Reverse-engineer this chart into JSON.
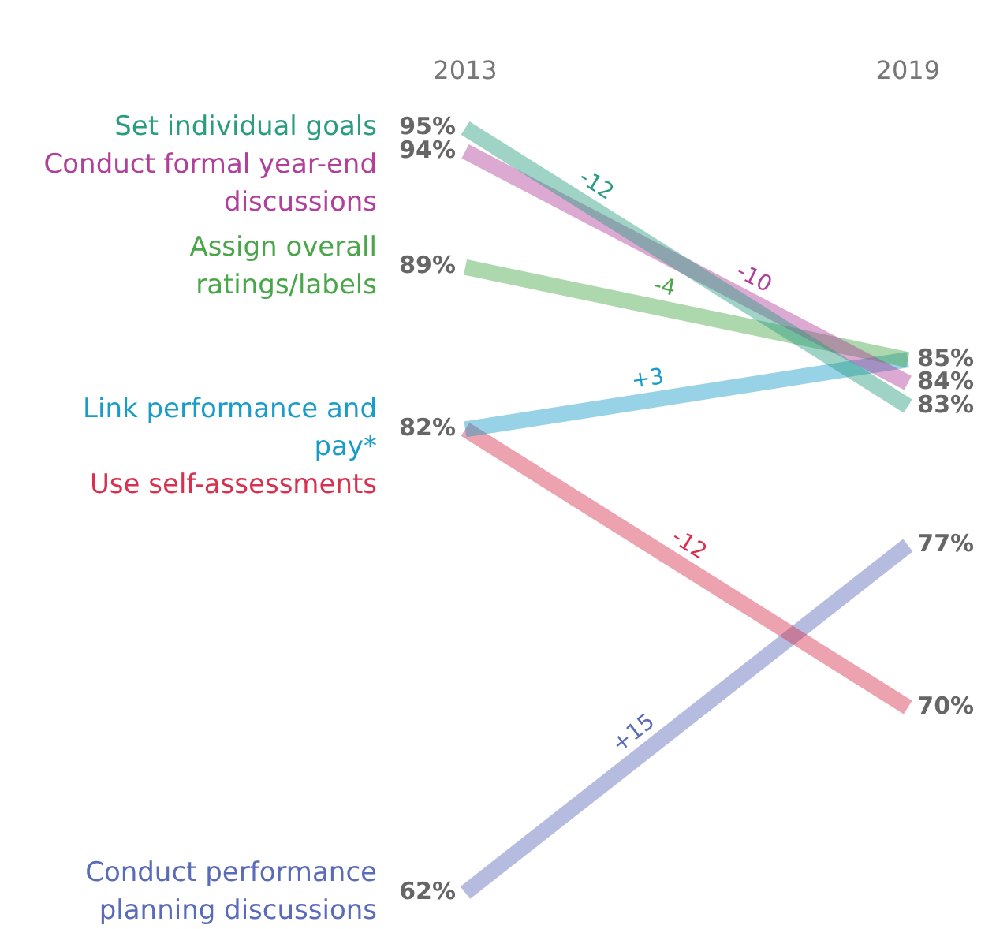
{
  "chart_data": {
    "type": "line",
    "categories": [
      "2013",
      "2019"
    ],
    "tick_labels": "x",
    "grid": false,
    "legend": false,
    "marker": "none",
    "line_style": "solid",
    "series": [
      {
        "name": "Set individual goals",
        "color": "#2a9d80",
        "values": [
          95,
          83
        ],
        "value_labels": [
          "95%",
          "83%"
        ]
      },
      {
        "name": "Conduct formal year-end discussions",
        "color": "#b0409a",
        "values": [
          94,
          84
        ],
        "value_labels": [
          "94%",
          "84%"
        ]
      },
      {
        "name": "Assign overall ratings/labels",
        "color": "#4aa64a",
        "values": [
          89,
          85
        ],
        "value_labels": [
          "89%",
          "85%"
        ]
      },
      {
        "name": "Link performance and pay*",
        "color": "#1a9cc8",
        "values": [
          82,
          85
        ],
        "value_labels": [
          "82%",
          null
        ]
      },
      {
        "name": "Use self-assessments",
        "color": "#d8304e",
        "values": [
          82,
          70
        ],
        "value_labels": [
          null,
          "70%"
        ]
      },
      {
        "name": "Conduct performance planning discussions",
        "color": "#5a6bb8",
        "values": [
          62,
          77
        ],
        "value_labels": [
          "62%",
          "77%"
        ]
      }
    ],
    "annotations": [
      "-12",
      "-10",
      "-4",
      "+3",
      "-12",
      "+15"
    ]
  }
}
